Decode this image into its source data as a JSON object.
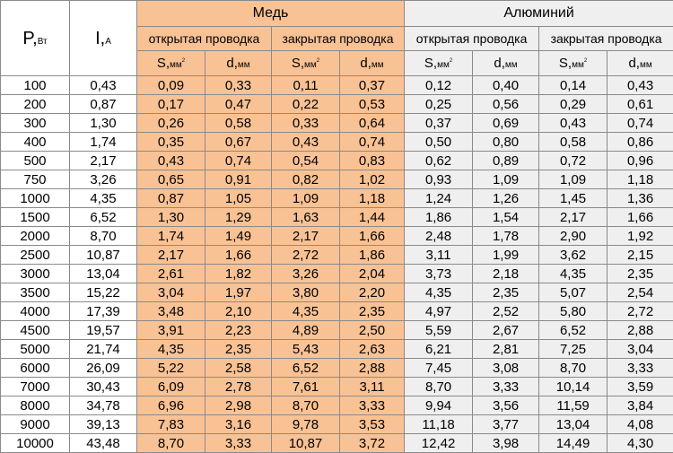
{
  "header": {
    "p_symbol": "P,",
    "p_unit": "Вт",
    "i_symbol": "I,",
    "i_unit": "А",
    "copper": "Медь",
    "aluminum": "Алюминий",
    "open": "открытая проводка",
    "closed": "закрытая проводка",
    "s_symbol": "S,",
    "s_unit": "мм",
    "s_sup": "2",
    "d_symbol": "d,",
    "d_unit": "мм"
  },
  "rows": [
    [
      "100",
      "0,43",
      "0,09",
      "0,33",
      "0,11",
      "0,37",
      "0,12",
      "0,40",
      "0,14",
      "0,43"
    ],
    [
      "200",
      "0,87",
      "0,17",
      "0,47",
      "0,22",
      "0,53",
      "0,25",
      "0,56",
      "0,29",
      "0,61"
    ],
    [
      "300",
      "1,30",
      "0,26",
      "0,58",
      "0,33",
      "0,64",
      "0,37",
      "0,69",
      "0,43",
      "0,74"
    ],
    [
      "400",
      "1,74",
      "0,35",
      "0,67",
      "0,43",
      "0,74",
      "0,50",
      "0,80",
      "0,58",
      "0,86"
    ],
    [
      "500",
      "2,17",
      "0,43",
      "0,74",
      "0,54",
      "0,83",
      "0,62",
      "0,89",
      "0,72",
      "0,96"
    ],
    [
      "750",
      "3,26",
      "0,65",
      "0,91",
      "0,82",
      "1,02",
      "0,93",
      "1,09",
      "1,09",
      "1,18"
    ],
    [
      "1000",
      "4,35",
      "0,87",
      "1,05",
      "1,09",
      "1,18",
      "1,24",
      "1,26",
      "1,45",
      "1,36"
    ],
    [
      "1500",
      "6,52",
      "1,30",
      "1,29",
      "1,63",
      "1,44",
      "1,86",
      "1,54",
      "2,17",
      "1,66"
    ],
    [
      "2000",
      "8,70",
      "1,74",
      "1,49",
      "2,17",
      "1,66",
      "2,48",
      "1,78",
      "2,90",
      "1,92"
    ],
    [
      "2500",
      "10,87",
      "2,17",
      "1,66",
      "2,72",
      "1,86",
      "3,11",
      "1,99",
      "3,62",
      "2,15"
    ],
    [
      "3000",
      "13,04",
      "2,61",
      "1,82",
      "3,26",
      "2,04",
      "3,73",
      "2,18",
      "4,35",
      "2,35"
    ],
    [
      "3500",
      "15,22",
      "3,04",
      "1,97",
      "3,80",
      "2,20",
      "4,35",
      "2,35",
      "5,07",
      "2,54"
    ],
    [
      "4000",
      "17,39",
      "3,48",
      "2,10",
      "4,35",
      "2,35",
      "4,97",
      "2,52",
      "5,80",
      "2,72"
    ],
    [
      "4500",
      "19,57",
      "3,91",
      "2,23",
      "4,89",
      "2,50",
      "5,59",
      "2,67",
      "6,52",
      "2,88"
    ],
    [
      "5000",
      "21,74",
      "4,35",
      "2,35",
      "5,43",
      "2,63",
      "6,21",
      "2,81",
      "7,25",
      "3,04"
    ],
    [
      "6000",
      "26,09",
      "5,22",
      "2,58",
      "6,52",
      "2,88",
      "7,45",
      "3,08",
      "8,70",
      "3,33"
    ],
    [
      "7000",
      "30,43",
      "6,09",
      "2,78",
      "7,61",
      "3,11",
      "8,70",
      "3,33",
      "10,14",
      "3,59"
    ],
    [
      "8000",
      "34,78",
      "6,96",
      "2,98",
      "8,70",
      "3,33",
      "9,94",
      "3,56",
      "11,59",
      "3,84"
    ],
    [
      "9000",
      "39,13",
      "7,83",
      "3,16",
      "9,78",
      "3,53",
      "11,18",
      "3,77",
      "13,04",
      "4,08"
    ],
    [
      "10000",
      "43,48",
      "8,70",
      "3,33",
      "10,87",
      "3,72",
      "12,42",
      "3,98",
      "14,49",
      "4,30"
    ]
  ]
}
